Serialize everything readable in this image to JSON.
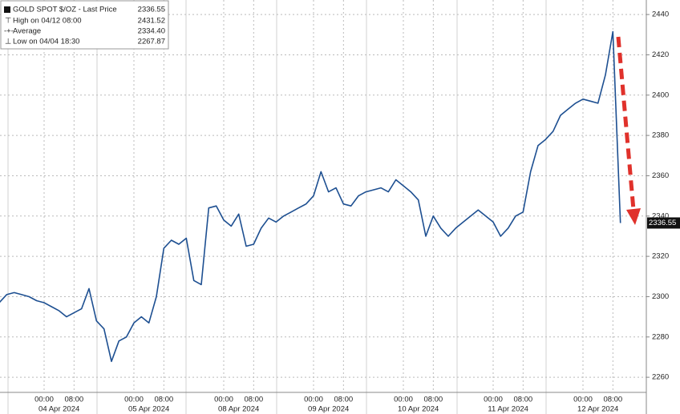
{
  "chart_data": {
    "type": "line",
    "x": [
      "2024-04-03 12:00",
      "2024-04-03 14:00",
      "2024-04-03 16:00",
      "2024-04-03 18:00",
      "2024-04-03 20:00",
      "2024-04-03 22:00",
      "2024-04-04 00:00",
      "2024-04-04 02:00",
      "2024-04-04 04:00",
      "2024-04-04 06:00",
      "2024-04-04 08:00",
      "2024-04-04 10:00",
      "2024-04-04 12:00",
      "2024-04-04 14:00",
      "2024-04-04 16:00",
      "2024-04-04 18:00",
      "2024-04-04 20:00",
      "2024-04-04 22:00",
      "2024-04-05 00:00",
      "2024-04-05 02:00",
      "2024-04-05 04:00",
      "2024-04-05 06:00",
      "2024-04-05 08:00",
      "2024-04-05 10:00",
      "2024-04-05 12:00",
      "2024-04-05 14:00",
      "2024-04-05 16:00",
      "2024-04-05 18:00",
      "2024-04-05 20:00",
      "2024-04-05 22:00",
      "2024-04-08 00:00",
      "2024-04-08 02:00",
      "2024-04-08 04:00",
      "2024-04-08 06:00",
      "2024-04-08 08:00",
      "2024-04-08 10:00",
      "2024-04-08 12:00",
      "2024-04-08 14:00",
      "2024-04-08 16:00",
      "2024-04-08 18:00",
      "2024-04-08 20:00",
      "2024-04-08 22:00",
      "2024-04-09 00:00",
      "2024-04-09 02:00",
      "2024-04-09 04:00",
      "2024-04-09 06:00",
      "2024-04-09 08:00",
      "2024-04-09 10:00",
      "2024-04-09 12:00",
      "2024-04-09 14:00",
      "2024-04-09 16:00",
      "2024-04-09 18:00",
      "2024-04-09 20:00",
      "2024-04-09 22:00",
      "2024-04-10 00:00",
      "2024-04-10 02:00",
      "2024-04-10 04:00",
      "2024-04-10 06:00",
      "2024-04-10 08:00",
      "2024-04-10 10:00",
      "2024-04-10 12:00",
      "2024-04-10 14:00",
      "2024-04-10 16:00",
      "2024-04-10 18:00",
      "2024-04-10 20:00",
      "2024-04-10 22:00",
      "2024-04-11 00:00",
      "2024-04-11 02:00",
      "2024-04-11 04:00",
      "2024-04-11 06:00",
      "2024-04-11 08:00",
      "2024-04-11 10:00",
      "2024-04-11 12:00",
      "2024-04-11 14:00",
      "2024-04-11 16:00",
      "2024-04-11 18:00",
      "2024-04-11 20:00",
      "2024-04-11 22:00",
      "2024-04-12 00:00",
      "2024-04-12 02:00",
      "2024-04-12 04:00",
      "2024-04-12 06:00",
      "2024-04-12 08:00",
      "2024-04-12 10:00"
    ],
    "series": [
      {
        "name": "GOLD SPOT $/OZ - Last Price",
        "color": "#1d4f91",
        "values": [
          2297,
          2301,
          2302,
          2301,
          2300,
          2298,
          2297,
          2295,
          2293,
          2290,
          2292,
          2294,
          2304,
          2288,
          2284,
          2267.87,
          2278,
          2280,
          2287,
          2290,
          2287,
          2300,
          2324,
          2328,
          2326,
          2329,
          2308,
          2306,
          2344,
          2345,
          2338,
          2335,
          2341,
          2325,
          2326,
          2334,
          2339,
          2337,
          2340,
          2342,
          2344,
          2346,
          2350,
          2362,
          2352,
          2354,
          2346,
          2345,
          2350,
          2352,
          2353,
          2354,
          2352,
          2358,
          2355,
          2352,
          2348,
          2330,
          2340,
          2334,
          2330,
          2334,
          2337,
          2340,
          2343,
          2340,
          2337,
          2330,
          2334,
          2340,
          2342,
          2362,
          2375,
          2378,
          2382,
          2390,
          2393,
          2396,
          2398,
          2397,
          2396,
          2410,
          2431.52,
          2336.55
        ]
      }
    ],
    "legend_stats": [
      {
        "label": "High on 04/12 08:00",
        "value": "2431.52"
      },
      {
        "label": "Average",
        "value": "2334.40"
      },
      {
        "label": "Low on 04/04 18:30",
        "value": "2267.87"
      }
    ],
    "ylim": [
      2252.5,
      2447.2
    ],
    "yticks": [
      2260,
      2280,
      2300,
      2320,
      2340,
      2360,
      2380,
      2400,
      2420,
      2440
    ],
    "xticks": [
      {
        "value": "2024-04-04 00:00",
        "label": "00:00"
      },
      {
        "value": "2024-04-04 08:00",
        "label": "08:00"
      },
      {
        "value": "2024-04-05 00:00",
        "label": "00:00"
      },
      {
        "value": "2024-04-05 08:00",
        "label": "08:00"
      },
      {
        "value": "2024-04-08 00:00",
        "label": "00:00"
      },
      {
        "value": "2024-04-08 08:00",
        "label": "08:00"
      },
      {
        "value": "2024-04-09 00:00",
        "label": "00:00"
      },
      {
        "value": "2024-04-09 08:00",
        "label": "08:00"
      },
      {
        "value": "2024-04-10 00:00",
        "label": "00:00"
      },
      {
        "value": "2024-04-10 08:00",
        "label": "08:00"
      },
      {
        "value": "2024-04-11 00:00",
        "label": "00:00"
      },
      {
        "value": "2024-04-11 08:00",
        "label": "08:00"
      },
      {
        "value": "2024-04-12 00:00",
        "label": "00:00"
      },
      {
        "value": "2024-04-12 08:00",
        "label": "08:00"
      }
    ],
    "date_ticks": [
      {
        "value": "2024-04-04 04:00",
        "label": "04 Apr 2024"
      },
      {
        "value": "2024-04-05 04:00",
        "label": "05 Apr 2024"
      },
      {
        "value": "2024-04-08 04:00",
        "label": "08 Apr 2024"
      },
      {
        "value": "2024-04-09 04:00",
        "label": "09 Apr 2024"
      },
      {
        "value": "2024-04-10 04:00",
        "label": "10 Apr 2024"
      },
      {
        "value": "2024-04-11 04:00",
        "label": "11 Apr 2024"
      },
      {
        "value": "2024-04-12 04:00",
        "label": "12 Apr 2024"
      }
    ],
    "grid": true
  }
}
